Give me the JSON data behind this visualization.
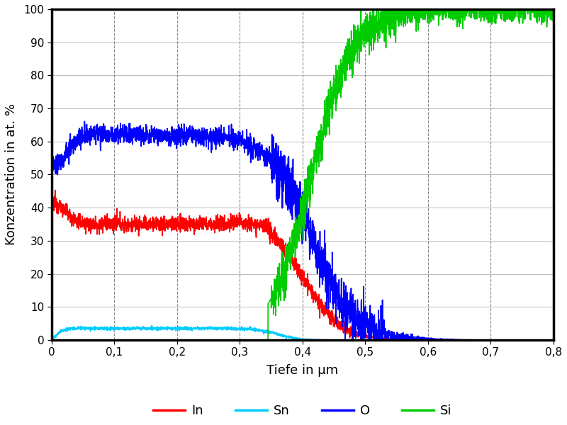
{
  "title": "",
  "xlabel": "Tiefe in μm",
  "ylabel": "Konzentration in at. %",
  "xlim": [
    0,
    0.8
  ],
  "ylim": [
    0,
    100
  ],
  "xticks": [
    0,
    0.1,
    0.2,
    0.3,
    0.4,
    0.5,
    0.6,
    0.7,
    0.8
  ],
  "yticks": [
    0,
    10,
    20,
    30,
    40,
    50,
    60,
    70,
    80,
    90,
    100
  ],
  "legend_labels": [
    "In",
    "Sn",
    "O",
    "Si"
  ],
  "legend_colors": [
    "#ff0000",
    "#00ccff",
    "#0000ff",
    "#00cc00"
  ],
  "grid_color_v": "#888888",
  "grid_color_h": "#bbbbbb",
  "background_color": "#ffffff",
  "linewidth": 1.2,
  "figsize": [
    8.0,
    6.0
  ],
  "dpi": 100
}
